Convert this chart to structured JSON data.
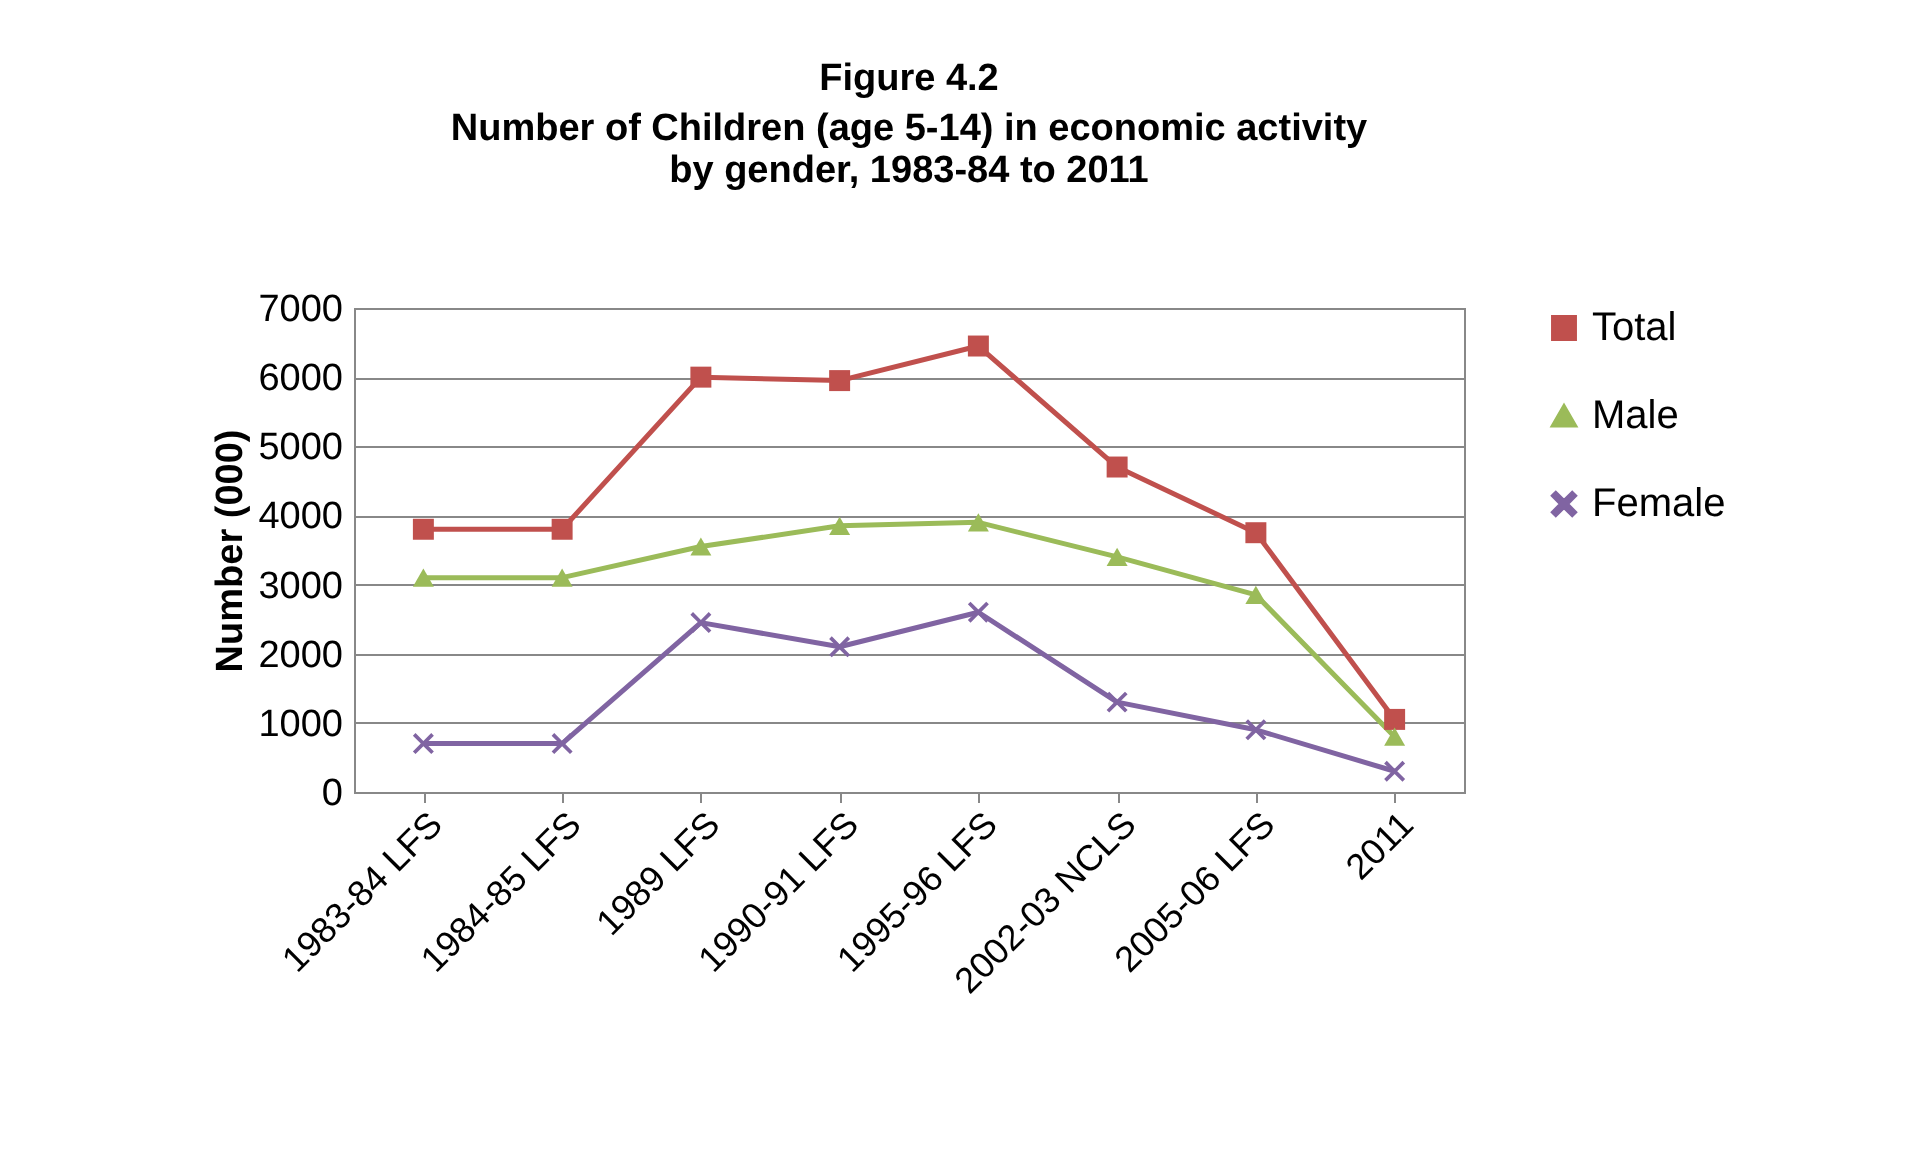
{
  "chart_data": {
    "type": "line",
    "title": "Figure 4.2",
    "subtitle": "Number of Children (age 5-14) in economic activity\nby gender, 1983-84 to 2011",
    "ylabel": "Number (000)",
    "categories": [
      "1983-84 LFS",
      "1984-85 LFS",
      "1989 LFS",
      "1990-91 LFS",
      "1995-96 LFS",
      "2002-03 NCLS",
      "2005-06 LFS",
      "2011"
    ],
    "series": [
      {
        "name": "Total",
        "color": "#c0504d",
        "marker": "square",
        "values": [
          3800,
          3800,
          6000,
          5950,
          6450,
          4700,
          3750,
          1050
        ]
      },
      {
        "name": "Male",
        "color": "#9bbb59",
        "marker": "triangle",
        "values": [
          3100,
          3100,
          3550,
          3850,
          3900,
          3400,
          2850,
          800
        ]
      },
      {
        "name": "Female",
        "color": "#8064a2",
        "marker": "cross",
        "values": [
          700,
          700,
          2450,
          2100,
          2600,
          1300,
          900,
          300
        ]
      }
    ],
    "ylim": [
      0,
      7000
    ],
    "yticks": [
      0,
      1000,
      2000,
      3000,
      4000,
      5000,
      6000,
      7000
    ],
    "grid": "y",
    "legend": "right"
  }
}
